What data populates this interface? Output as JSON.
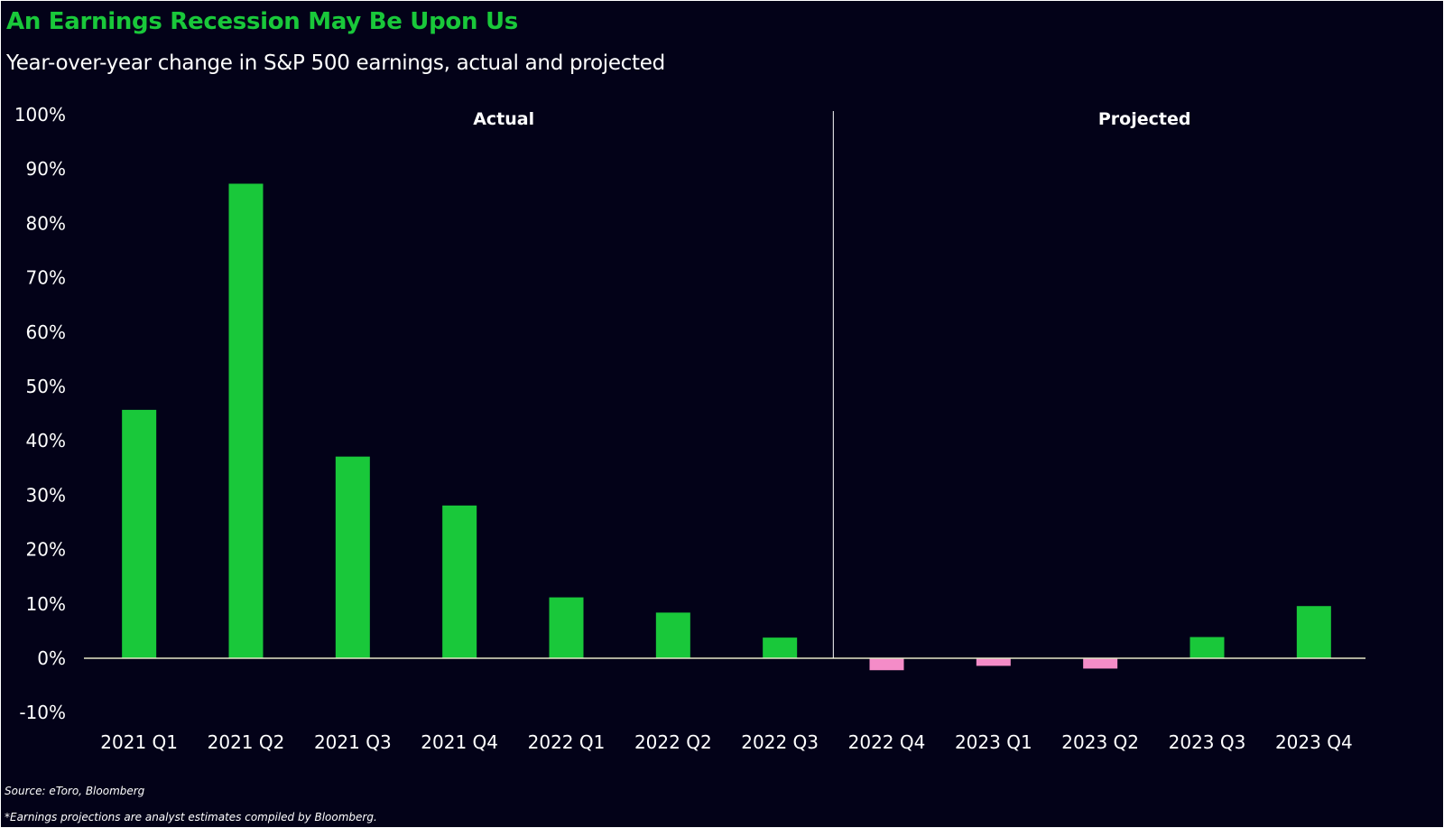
{
  "title": "An Earnings Recession May Be Upon Us",
  "subtitle": "Year-over-year change in S&P 500 earnings, actual and projected",
  "source": "Source: eToro, Bloomberg",
  "footnote": "*Earnings projections are analyst estimates compiled by Bloomberg.",
  "colors": {
    "background": "#030218",
    "positive": "#19c83a",
    "negative": "#f48cc8",
    "text": "#ffffff"
  },
  "chart_data": {
    "type": "bar",
    "categories": [
      "2021 Q1",
      "2021 Q2",
      "2021 Q3",
      "2021 Q4",
      "2022 Q1",
      "2022 Q2",
      "2022 Q3",
      "2022 Q4",
      "2023 Q1",
      "2023 Q2",
      "2023 Q3",
      "2023 Q4"
    ],
    "values": [
      45.7,
      87.3,
      37.1,
      28.1,
      11.2,
      8.4,
      3.8,
      -2.2,
      -1.4,
      -1.9,
      3.9,
      9.6
    ],
    "yticks": [
      "100%",
      "90%",
      "80%",
      "70%",
      "60%",
      "50%",
      "40%",
      "30%",
      "20%",
      "10%",
      "0%",
      "-10%"
    ],
    "ylim": [
      -10,
      100
    ],
    "regions": [
      "Actual",
      "Projected"
    ],
    "divider_after_category": "2022 Q3",
    "grid": false,
    "legend": "none"
  }
}
